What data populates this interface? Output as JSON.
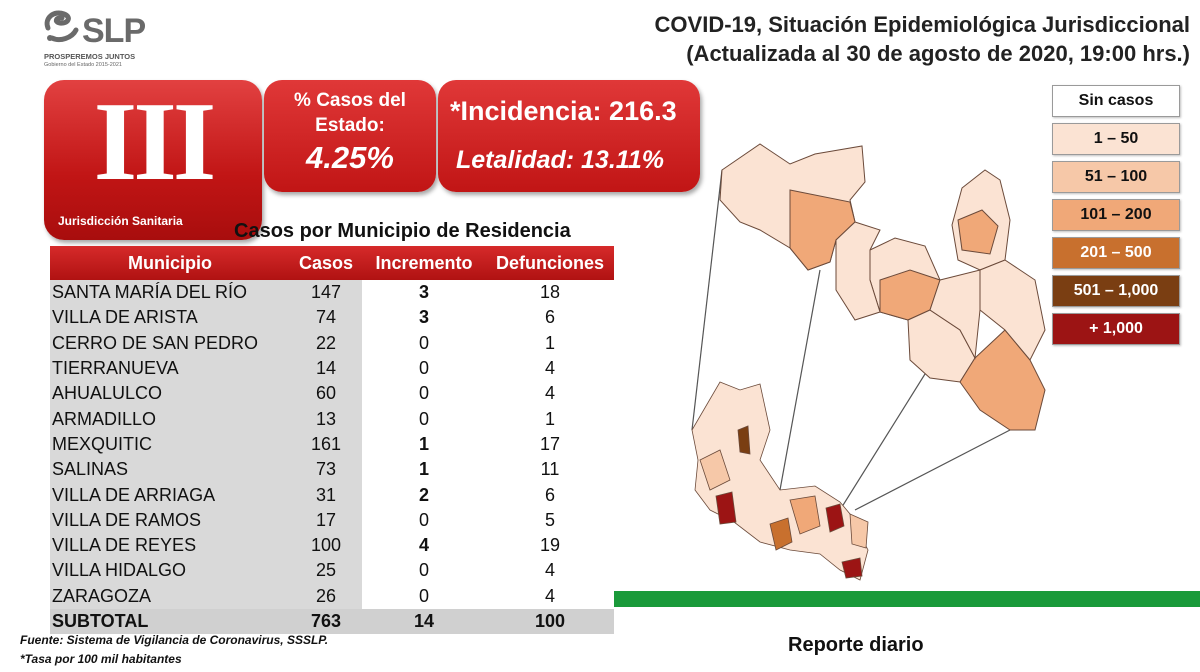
{
  "logo": {
    "brand": "SLP",
    "tagline": "PROSPEREMOS JUNTOS",
    "subtitle": "Gobierno del Estado 2015-2021"
  },
  "header": {
    "title_line1": "COVID-19, Situación Epidemiológica Jurisdiccional",
    "title_line2": "(Actualizada al 30 de agosto de 2020, 19:00 hrs.)"
  },
  "jurisdiction": {
    "numeral": "III",
    "label": "Jurisdicción Sanitaria"
  },
  "percent_card": {
    "label": "% Casos del Estado:",
    "value": "4.25%"
  },
  "incidence_card": {
    "incidence": "*Incidencia: 216.3",
    "lethality": "Letalidad: 13.11%"
  },
  "table": {
    "title": "Casos por Municipio  de Residencia",
    "headers": [
      "Municipio",
      "Casos",
      "Incremento",
      "Defunciones"
    ],
    "rows": [
      {
        "municipio": "SANTA MARÍA DEL RÍO",
        "casos": "147",
        "incremento": "3",
        "defunciones": "18",
        "inc_bold": true
      },
      {
        "municipio": "VILLA DE ARISTA",
        "casos": "74",
        "incremento": "3",
        "defunciones": "6",
        "inc_bold": true
      },
      {
        "municipio": "CERRO DE SAN PEDRO",
        "casos": "22",
        "incremento": "0",
        "defunciones": "1",
        "inc_bold": false
      },
      {
        "municipio": "TIERRANUEVA",
        "casos": "14",
        "incremento": "0",
        "defunciones": "4",
        "inc_bold": false
      },
      {
        "municipio": "AHUALULCO",
        "casos": "60",
        "incremento": "0",
        "defunciones": "4",
        "inc_bold": false
      },
      {
        "municipio": "ARMADILLO",
        "casos": "13",
        "incremento": "0",
        "defunciones": "1",
        "inc_bold": false
      },
      {
        "municipio": "MEXQUITIC",
        "casos": "161",
        "incremento": "1",
        "defunciones": "17",
        "inc_bold": true
      },
      {
        "municipio": "SALINAS",
        "casos": "73",
        "incremento": "1",
        "defunciones": "11",
        "inc_bold": true
      },
      {
        "municipio": "VILLA DE ARRIAGA",
        "casos": "31",
        "incremento": "2",
        "defunciones": "6",
        "inc_bold": true
      },
      {
        "municipio": "VILLA DE RAMOS",
        "casos": "17",
        "incremento": "0",
        "defunciones": "5",
        "inc_bold": false
      },
      {
        "municipio": "VILLA DE REYES",
        "casos": "100",
        "incremento": "4",
        "defunciones": "19",
        "inc_bold": true
      },
      {
        "municipio": "VILLA HIDALGO",
        "casos": "25",
        "incremento": "0",
        "defunciones": "4",
        "inc_bold": false
      },
      {
        "municipio": "ZARAGOZA",
        "casos": "26",
        "incremento": "0",
        "defunciones": "4",
        "inc_bold": false
      }
    ],
    "subtotal": {
      "label": "SUBTOTAL",
      "casos": "763",
      "incremento": "14",
      "defunciones": "100"
    }
  },
  "footnotes": {
    "source": "Fuente: Sistema de Vigilancia de Coronavirus, SSSLP.",
    "rate": "*Tasa por 100 mil habitantes"
  },
  "legend": [
    {
      "label": "Sin casos",
      "color": "#ffffff",
      "text_color": "#111111"
    },
    {
      "label": "1 – 50",
      "color": "#fbe3d3",
      "text_color": "#111111"
    },
    {
      "label": "51 – 100",
      "color": "#f6c8a8",
      "text_color": "#111111"
    },
    {
      "label": "101 – 200",
      "color": "#f0a878",
      "text_color": "#111111"
    },
    {
      "label": "201 – 500",
      "color": "#c8702e",
      "text_color": "#ffffff"
    },
    {
      "label": "501 – 1,000",
      "color": "#7a3e12",
      "text_color": "#ffffff"
    },
    {
      "label": "+ 1,000",
      "color": "#9c1414",
      "text_color": "#ffffff"
    }
  ],
  "footer": {
    "report_label": "Reporte diario"
  }
}
